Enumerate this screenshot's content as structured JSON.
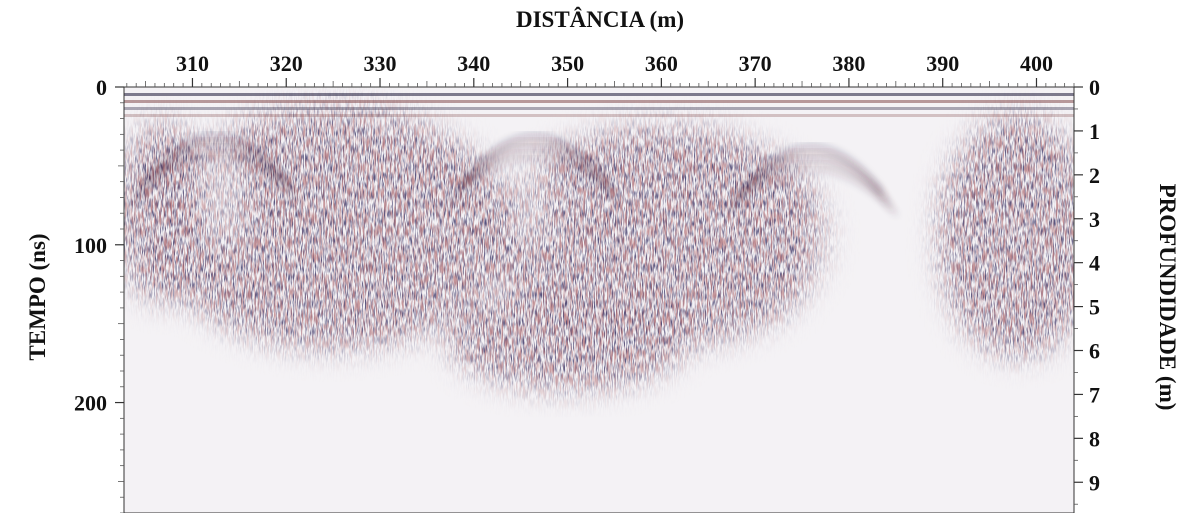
{
  "chart_data": {
    "type": "heatmap",
    "title": "",
    "xlabel": "DISTÂNCIA (m)",
    "ylabel_left": "TEMPO (ns)",
    "ylabel_right": "PROFUNDIDADE (m)",
    "x_range": [
      302.7,
      404.0
    ],
    "x_ticks": [
      310,
      320,
      330,
      340,
      350,
      360,
      370,
      380,
      390,
      400
    ],
    "y_left_range": [
      0,
      270
    ],
    "y_left_ticks": [
      0,
      100,
      200
    ],
    "y_right_range": [
      0,
      9.7
    ],
    "y_right_ticks": [
      0,
      1,
      2,
      3,
      4,
      5,
      6,
      7,
      8,
      9
    ],
    "grid": false,
    "legend": "none",
    "colors": {
      "dark": "#1c1836",
      "mid": "#6d2a2c",
      "light": "#f1eef2"
    },
    "hyperbola_apexes": [
      {
        "x": 312.5,
        "t": 15
      },
      {
        "x": 346.5,
        "t": 15
      },
      {
        "x": 376.0,
        "t": 22
      }
    ]
  }
}
